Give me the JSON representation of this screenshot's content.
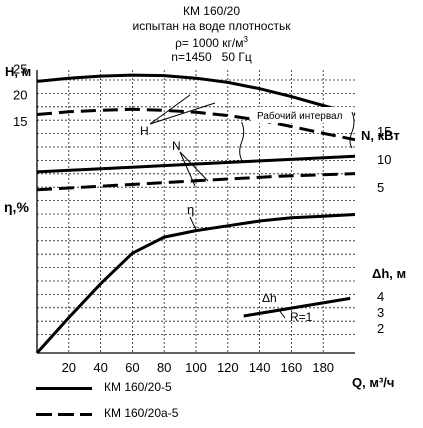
{
  "header": {
    "model": "КМ 160/20",
    "medium": "испытан на воде плотностьк",
    "density_symbol": "ρ",
    "density_text": "= 1000 кг/м",
    "density_sup": "3",
    "speed": "n=1450",
    "frequency": "50 Гц"
  },
  "chart_data": {
    "type": "line",
    "x_axis": {
      "label": "Q, м³/ч",
      "range": [
        0,
        200
      ],
      "ticks": [
        "20",
        "40",
        "60",
        "80",
        "100",
        "120",
        "140",
        "160",
        "180"
      ],
      "tick_values": [
        20,
        40,
        60,
        80,
        100,
        120,
        140,
        160,
        180
      ]
    },
    "grid": true,
    "panels": {
      "head": {
        "axis_label": "Н, м",
        "range": [
          8,
          28
        ],
        "ticks": [
          "25",
          "20",
          "15"
        ],
        "tick_values": [
          25,
          20,
          15
        ],
        "curve_label": "Н"
      },
      "power": {
        "axis_label": "N, кВт",
        "range": [
          0,
          20
        ],
        "ticks": [
          "15",
          "10",
          "5"
        ],
        "tick_values": [
          15,
          10,
          5
        ],
        "curve_label": "N"
      },
      "efficiency": {
        "axis_label": "η,%",
        "range": [
          0,
          100
        ],
        "curve_label": "η"
      },
      "npsh": {
        "axis_label": "Δh, м",
        "range": [
          0,
          7.5
        ],
        "ticks": [
          "4",
          "3",
          "2"
        ],
        "tick_values": [
          4,
          3,
          2
        ],
        "curve_label": "Δh",
        "curve_note": "R=1"
      }
    },
    "annotation": "Рабочий интервал",
    "series": [
      {
        "name": "КМ 160/20-5",
        "style": "solid",
        "panel": "head",
        "x": [
          0,
          20,
          40,
          60,
          80,
          100,
          120,
          140,
          160,
          180,
          200
        ],
        "y": [
          22.5,
          23.1,
          23.5,
          23.7,
          23.6,
          23.1,
          22.3,
          21.1,
          19.6,
          17.9,
          16.2
        ]
      },
      {
        "name": "КМ 160/20а-5",
        "style": "dashed",
        "panel": "head",
        "x": [
          0,
          20,
          40,
          60,
          80,
          100,
          120,
          140,
          160,
          180,
          200
        ],
        "y": [
          16.2,
          16.7,
          17.0,
          17.2,
          17.0,
          16.6,
          16.0,
          15.1,
          13.9,
          12.6,
          11.4
        ]
      },
      {
        "name": "КМ 160/20-5",
        "style": "solid",
        "panel": "power",
        "x": [
          0,
          50,
          100,
          150,
          200
        ],
        "y": [
          7.7,
          8.4,
          9.1,
          9.8,
          10.5
        ]
      },
      {
        "name": "КМ 160/20а-5",
        "style": "dashed",
        "panel": "power",
        "x": [
          0,
          50,
          100,
          150,
          200
        ],
        "y": [
          4.5,
          5.3,
          6.1,
          6.9,
          7.4
        ]
      },
      {
        "name": "КМ 160/20-5",
        "style": "solid",
        "panel": "efficiency",
        "x": [
          0,
          20,
          40,
          60,
          80,
          100,
          120,
          140,
          160,
          180,
          200
        ],
        "y": [
          0,
          22,
          43,
          62,
          72,
          76,
          79,
          82,
          84,
          85,
          86
        ]
      },
      {
        "name": "КМ 160/20-5",
        "style": "solid",
        "panel": "npsh",
        "x": [
          130,
          197
        ],
        "y": [
          2.75,
          3.85
        ]
      }
    ],
    "working_interval": [
      130,
      200
    ]
  },
  "legend": {
    "entries": [
      {
        "label": "КМ 160/20-5",
        "style": "solid"
      },
      {
        "label": "КМ 160/20а-5",
        "style": "dashed"
      }
    ]
  }
}
